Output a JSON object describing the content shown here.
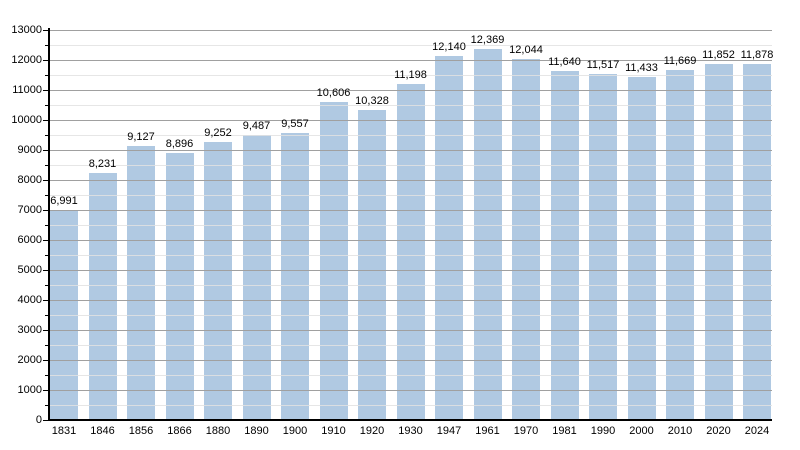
{
  "chart_data": {
    "type": "bar",
    "title": "",
    "xlabel": "",
    "ylabel": "",
    "categories": [
      "1831",
      "1846",
      "1856",
      "1866",
      "1880",
      "1890",
      "1900",
      "1910",
      "1920",
      "1930",
      "1947",
      "1961",
      "1970",
      "1981",
      "1990",
      "2000",
      "2010",
      "2020",
      "2024"
    ],
    "values": [
      6991,
      8231,
      9127,
      8896,
      9252,
      9487,
      9557,
      10606,
      10328,
      11198,
      12140,
      12369,
      12044,
      11640,
      11517,
      11433,
      11669,
      11852,
      11878
    ],
    "value_labels": [
      "6,991",
      "8,231",
      "9,127",
      "8,896",
      "9,252",
      "9,487",
      "9,557",
      "10,606",
      "10,328",
      "11,198",
      "12,140",
      "12,369",
      "12,044",
      "11,640",
      "11,517",
      "11,433",
      "11,669",
      "11,852",
      "11,878"
    ],
    "y_tick_labels": [
      "0",
      "1000",
      "2000",
      "3000",
      "4000",
      "5000",
      "6000",
      "7000",
      "8000",
      "9000",
      "10000",
      "11000",
      "12000",
      "13000"
    ],
    "ylim": [
      0,
      13000
    ],
    "y_major_step": 1000,
    "y_minor_step": 500,
    "grid": "on",
    "legend_position": "none",
    "colors": {
      "bar_fill": "#b0c9e2",
      "grid_major": "#a0a0a0",
      "grid_minor": "#e2e2e2",
      "axis": "#000000",
      "text": "#000000",
      "background": "#ffffff"
    }
  }
}
